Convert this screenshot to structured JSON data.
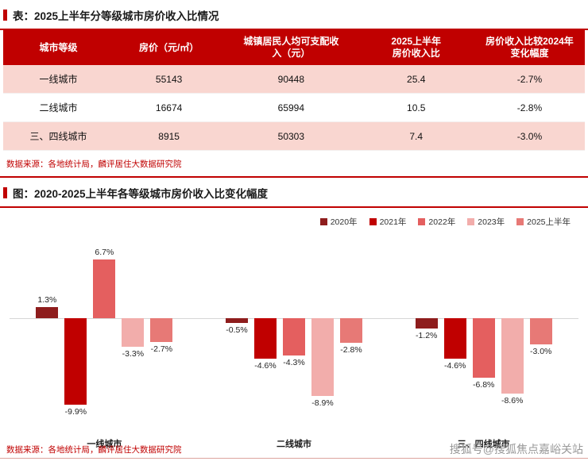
{
  "page": {
    "table_section": {
      "title": "表：2025上半年分等级城市房价收入比情况",
      "table": {
        "headers": [
          "城市等级",
          "房价（元/㎡）",
          "城镇居民人均可支配收\n入（元）",
          "2025上半年\n房价收入比",
          "房价收入比较2024年\n变化幅度"
        ],
        "rows": [
          [
            "一线城市",
            "55143",
            "90448",
            "25.4",
            "-2.7%"
          ],
          [
            "二线城市",
            "16674",
            "65994",
            "10.5",
            "-2.8%"
          ],
          [
            "三、四线城市",
            "8915",
            "50303",
            "7.4",
            "-3.0%"
          ]
        ]
      },
      "source": "数据来源：各地统计局，麟评居住大数据研究院"
    },
    "chart_section": {
      "title": "图：2020-2025上半年各等级城市房价收入比变化幅度",
      "source": "数据来源：各地统计局，麟评居住大数据研究院"
    },
    "watermark": "搜狐号@搜狐焦点嘉峪关站"
  },
  "colors": {
    "accent_red": "#c00000",
    "row_highlight_pink": "#f9d6d0",
    "watermark_gray": "#999999"
  },
  "chart_data": {
    "type": "bar",
    "categories": [
      "一线城市",
      "二线城市",
      "三、四线城市"
    ],
    "series": [
      {
        "name": "2020年",
        "color": "#8e1d1d",
        "values": [
          1.3,
          -0.5,
          -1.2
        ]
      },
      {
        "name": "2021年",
        "color": "#c00000",
        "values": [
          -9.9,
          -4.6,
          -4.6
        ]
      },
      {
        "name": "2022年",
        "color": "#e45f5f",
        "values": [
          6.7,
          -4.3,
          -6.8
        ]
      },
      {
        "name": "2023年",
        "color": "#f2adab",
        "values": [
          -3.3,
          -8.9,
          -8.6
        ]
      },
      {
        "name": "2025上半年",
        "color": "#e77976",
        "values": [
          -2.7,
          -2.8,
          -3.0
        ]
      }
    ],
    "title": "图：2020-2025上半年各等级城市房价收入比变化幅度",
    "xlabel": "",
    "ylabel": "",
    "ylim": [
      -11.5,
      8
    ],
    "grid": false,
    "legend_position": "top-right",
    "value_label_format": "{value}%"
  }
}
